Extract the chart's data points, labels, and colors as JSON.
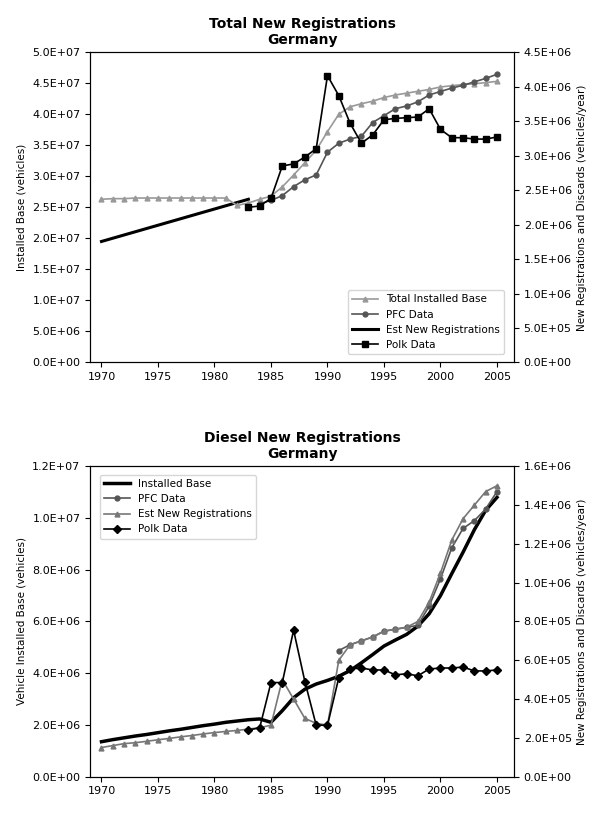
{
  "top": {
    "title": "Total New Registrations\nGermany",
    "ylabel_left": "Installed Base (vehicles)",
    "ylabel_right": "New Registrations and Discards (vehicles/year)",
    "ylim_left": [
      0,
      50000000.0
    ],
    "ylim_right": [
      0,
      4500000.0
    ],
    "yticks_left": [
      0,
      5000000.0,
      10000000.0,
      15000000.0,
      20000000.0,
      25000000.0,
      30000000.0,
      35000000.0,
      40000000.0,
      45000000.0,
      50000000.0
    ],
    "yticks_right": [
      0,
      500000.0,
      1000000.0,
      1500000.0,
      2000000.0,
      2500000.0,
      3000000.0,
      3500000.0,
      4000000.0,
      4500000.0
    ],
    "xlim": [
      1969,
      2006.5
    ],
    "xticks": [
      1970,
      1975,
      1980,
      1985,
      1990,
      1995,
      2000,
      2005
    ],
    "installed_base": {
      "x": [
        1970,
        1971,
        1972,
        1973,
        1974,
        1975,
        1976,
        1977,
        1978,
        1979,
        1980,
        1981,
        1982,
        1983,
        1984,
        1985,
        1986,
        1987,
        1988,
        1989,
        1990,
        1991,
        1992,
        1993,
        1994,
        1995,
        1996,
        1997,
        1998,
        1999,
        2000,
        2001,
        2002,
        2003,
        2004,
        2005
      ],
      "y": [
        26300000.0,
        26400000.0,
        26400000.0,
        26500000.0,
        26500000.0,
        26500000.0,
        26500000.0,
        26500000.0,
        26500000.0,
        26500000.0,
        26500000.0,
        26500000.0,
        25300000.0,
        25700000.0,
        26300000.0,
        26800000.0,
        28300000.0,
        30200000.0,
        32200000.0,
        34200000.0,
        37200000.0,
        40000000.0,
        41200000.0,
        41700000.0,
        42100000.0,
        42700000.0,
        43100000.0,
        43400000.0,
        43700000.0,
        44000000.0,
        44400000.0,
        44600000.0,
        44800000.0,
        44900000.0,
        45100000.0,
        45300000.0
      ],
      "label": "Total Installed Base",
      "color": "#999999",
      "marker": "^",
      "linewidth": 1.2,
      "markersize": 3.5
    },
    "pfc_data": {
      "x": [
        1984,
        1985,
        1986,
        1987,
        1988,
        1989,
        1990,
        1991,
        1992,
        1993,
        1994,
        1995,
        1996,
        1997,
        1998,
        1999,
        2000,
        2001,
        2002,
        2003,
        2004,
        2005
      ],
      "y": [
        2300000.0,
        2350000.0,
        2420000.0,
        2550000.0,
        2650000.0,
        2720000.0,
        3050000.0,
        3180000.0,
        3240000.0,
        3280000.0,
        3480000.0,
        3580000.0,
        3680000.0,
        3720000.0,
        3780000.0,
        3880000.0,
        3930000.0,
        3980000.0,
        4020000.0,
        4070000.0,
        4120000.0,
        4180000.0
      ],
      "label": "PFC Data",
      "color": "#555555",
      "marker": "o",
      "linewidth": 1.2,
      "markersize": 3.5
    },
    "est_new_reg": {
      "x": [
        1970,
        1983
      ],
      "y": [
        19500000.0,
        26300000.0
      ],
      "label": "Est New Registrations",
      "color": "#000000",
      "linewidth": 2.2
    },
    "polk_data": {
      "x": [
        1983,
        1984,
        1985,
        1986,
        1987,
        1988,
        1989,
        1990,
        1991,
        1992,
        1993,
        1994,
        1995,
        1996,
        1997,
        1998,
        1999,
        2000,
        2001,
        2002,
        2003,
        2004,
        2005
      ],
      "y": [
        2250000.0,
        2270000.0,
        2380000.0,
        2850000.0,
        2880000.0,
        2980000.0,
        3100000.0,
        4160000.0,
        3870000.0,
        3470000.0,
        3180000.0,
        3300000.0,
        3520000.0,
        3540000.0,
        3550000.0,
        3560000.0,
        3680000.0,
        3380000.0,
        3260000.0,
        3260000.0,
        3240000.0,
        3240000.0,
        3270000.0
      ],
      "label": "Polk Data",
      "color": "#000000",
      "marker": "s",
      "linewidth": 1.2,
      "markersize": 5
    }
  },
  "bottom": {
    "title": "Diesel New Registrations\nGermany",
    "ylabel_left": "Vehicle Installed Base (vehicles)",
    "ylabel_right": "New Registrations and Discards (vehicles/year)",
    "ylim_left": [
      0,
      12000000.0
    ],
    "ylim_right": [
      0,
      1600000.0
    ],
    "yticks_left": [
      0,
      2000000.0,
      4000000.0,
      6000000.0,
      8000000.0,
      10000000.0,
      12000000.0
    ],
    "yticks_right": [
      0,
      200000.0,
      400000.0,
      600000.0,
      800000.0,
      1000000.0,
      1200000.0,
      1400000.0,
      1600000.0
    ],
    "xlim": [
      1969,
      2006.5
    ],
    "xticks": [
      1970,
      1975,
      1980,
      1985,
      1990,
      1995,
      2000,
      2005
    ],
    "installed_base": {
      "x": [
        1970,
        1971,
        1972,
        1973,
        1974,
        1975,
        1976,
        1977,
        1978,
        1979,
        1980,
        1981,
        1982,
        1983,
        1984,
        1985,
        1986,
        1987,
        1988,
        1989,
        1990,
        1991,
        1992,
        1993,
        1994,
        1995,
        1996,
        1997,
        1998,
        1999,
        2000,
        2001,
        2002,
        2003,
        2004,
        2005
      ],
      "y": [
        1350000.0,
        1430000.0,
        1500000.0,
        1570000.0,
        1630000.0,
        1700000.0,
        1770000.0,
        1830000.0,
        1900000.0,
        1970000.0,
        2030000.0,
        2100000.0,
        2150000.0,
        2200000.0,
        2230000.0,
        2100000.0,
        2550000.0,
        3050000.0,
        3380000.0,
        3580000.0,
        3720000.0,
        3880000.0,
        4100000.0,
        4400000.0,
        4720000.0,
        5050000.0,
        5280000.0,
        5500000.0,
        5820000.0,
        6300000.0,
        7000000.0,
        7850000.0,
        8680000.0,
        9550000.0,
        10300000.0,
        10800000.0
      ],
      "label": "Installed Base",
      "color": "#000000",
      "linewidth": 2.5
    },
    "pfc_data": {
      "x": [
        1991,
        1992,
        1993,
        1994,
        1995,
        1996,
        1997,
        1998,
        1999,
        2000,
        2001,
        2002,
        2003,
        2004,
        2005
      ],
      "y": [
        650000.0,
        680000.0,
        700000.0,
        720000.0,
        750000.0,
        760000.0,
        770000.0,
        780000.0,
        880000.0,
        1020000.0,
        1180000.0,
        1280000.0,
        1320000.0,
        1380000.0,
        1470000.0
      ],
      "label": "PFC Data",
      "color": "#555555",
      "marker": "o",
      "linewidth": 1.2,
      "markersize": 3.5
    },
    "est_new_reg": {
      "x": [
        1970,
        1971,
        1972,
        1973,
        1974,
        1975,
        1976,
        1977,
        1978,
        1979,
        1980,
        1981,
        1982,
        1983,
        1984,
        1985,
        1986,
        1987,
        1988,
        1989,
        1990,
        1991,
        1992,
        1993,
        1994,
        1995,
        1996,
        1997,
        1998,
        1999,
        2000,
        2001,
        2002,
        2003,
        2004,
        2005
      ],
      "y": [
        150000.0,
        160000.0,
        170000.0,
        175000.0,
        182000.0,
        190000.0,
        197000.0,
        205000.0,
        212000.0,
        220000.0,
        227000.0,
        233000.0,
        238000.0,
        245000.0,
        252000.0,
        265000.0,
        500000.0,
        400000.0,
        300000.0,
        275000.0,
        265000.0,
        600000.0,
        680000.0,
        700000.0,
        720000.0,
        750000.0,
        760000.0,
        770000.0,
        800000.0,
        900000.0,
        1050000.0,
        1220000.0,
        1330000.0,
        1400000.0,
        1470000.0,
        1500000.0
      ],
      "label": "Est New Registrations",
      "color": "#777777",
      "marker": "^",
      "linewidth": 1.2,
      "markersize": 3.5
    },
    "polk_data": {
      "x": [
        1983,
        1984,
        1985,
        1986,
        1987,
        1988,
        1989,
        1990,
        1991,
        1992,
        1993,
        1994,
        1995,
        1996,
        1997,
        1998,
        1999,
        2000,
        2001,
        2002,
        2003,
        2004,
        2005
      ],
      "y": [
        240000.0,
        252000.0,
        485000.0,
        485000.0,
        755000.0,
        490000.0,
        265000.0,
        265000.0,
        510000.0,
        555000.0,
        560000.0,
        550000.0,
        550000.0,
        525000.0,
        530000.0,
        520000.0,
        555000.0,
        560000.0,
        560000.0,
        565000.0,
        545000.0,
        545000.0,
        550000.0
      ],
      "label": "Polk Data",
      "color": "#000000",
      "marker": "D",
      "linewidth": 1.2,
      "markersize": 4
    }
  }
}
